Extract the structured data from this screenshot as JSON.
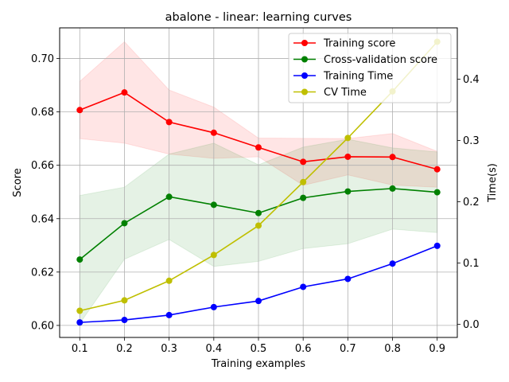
{
  "chart_data": {
    "type": "line",
    "title": "abalone - linear: learning curves",
    "xlabel": "Training examples",
    "ylabel": "Score",
    "y2label": "Time(s)",
    "x": [
      0.1,
      0.2,
      0.3,
      0.4,
      0.5,
      0.6,
      0.7,
      0.8,
      0.9
    ],
    "x_ticks": [
      "0.1",
      "0.2",
      "0.3",
      "0.4",
      "0.5",
      "0.6",
      "0.7",
      "0.8",
      "0.9"
    ],
    "xlim": [
      0.055,
      0.945
    ],
    "ylim": [
      0.5955,
      0.7115
    ],
    "y_ticks": [
      "0.60",
      "0.62",
      "0.64",
      "0.66",
      "0.68",
      "0.70"
    ],
    "y2lim": [
      -0.0215,
      0.4837
    ],
    "y2_ticks": [
      "0.0",
      "0.1",
      "0.2",
      "0.3",
      "0.4"
    ],
    "grid": true,
    "legend_position": "upper right",
    "series": [
      {
        "name": "Training score",
        "axis": "left",
        "color": "#ff0000",
        "values": [
          0.6807,
          0.6873,
          0.6762,
          0.6722,
          0.6667,
          0.6613,
          0.6632,
          0.6631,
          0.6585
        ],
        "band_low": [
          0.67,
          0.6683,
          0.6642,
          0.6626,
          0.6632,
          0.6525,
          0.6564,
          0.6526,
          0.6518
        ],
        "band_high": [
          0.6914,
          0.7063,
          0.6882,
          0.6818,
          0.6702,
          0.6701,
          0.67,
          0.6719,
          0.6652
        ],
        "band_color": "#ff0000"
      },
      {
        "name": "Cross-validation score",
        "axis": "left",
        "color": "#008000",
        "values": [
          0.6247,
          0.6383,
          0.6482,
          0.6452,
          0.6421,
          0.6478,
          0.6502,
          0.6513,
          0.6499
        ],
        "band_low": [
          0.6007,
          0.6248,
          0.6322,
          0.6221,
          0.624,
          0.6288,
          0.6306,
          0.6361,
          0.6348
        ],
        "band_high": [
          0.6487,
          0.6518,
          0.6642,
          0.6683,
          0.6602,
          0.6668,
          0.6698,
          0.6665,
          0.665
        ],
        "band_color": "#008000"
      },
      {
        "name": "Training Time",
        "axis": "right",
        "color": "#0000ff",
        "values": [
          0.003,
          0.007,
          0.015,
          0.028,
          0.038,
          0.061,
          0.074,
          0.099,
          0.128
        ]
      },
      {
        "name": "CV Time",
        "axis": "right",
        "color": "#bfbf00",
        "values": [
          0.022,
          0.039,
          0.071,
          0.113,
          0.161,
          0.232,
          0.304,
          0.38,
          0.461
        ]
      }
    ]
  }
}
